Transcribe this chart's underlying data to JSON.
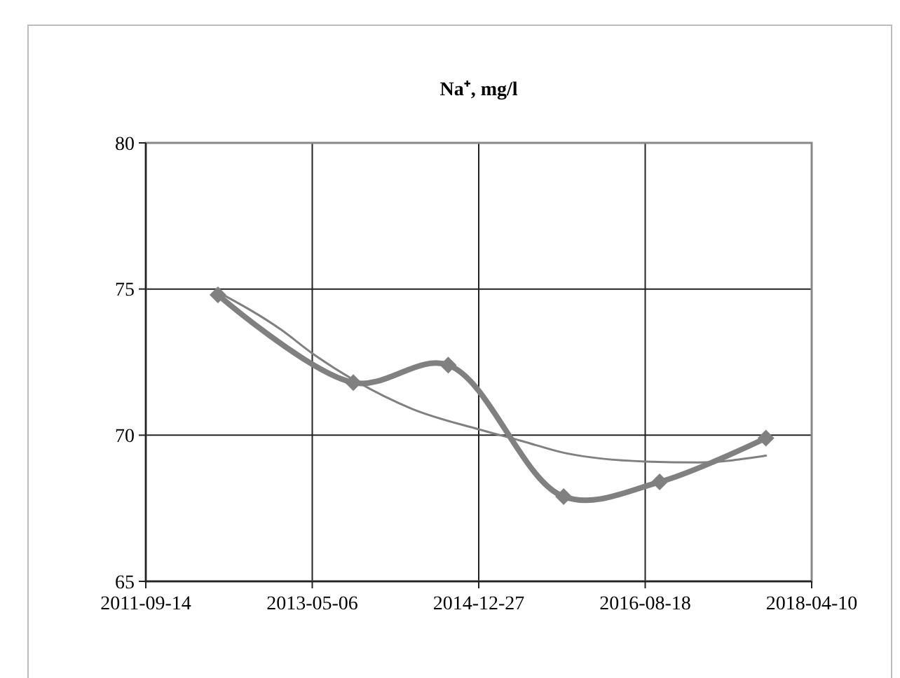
{
  "chart_data": {
    "type": "line",
    "title": "Na⁺, mg/l",
    "xlim": [
      "2011-09-14",
      "2018-04-10"
    ],
    "xticks": [
      "2011-09-14",
      "2013-05-06",
      "2014-12-27",
      "2016-08-18",
      "2018-04-10"
    ],
    "ylim": [
      65,
      80
    ],
    "yticks": [
      65,
      70,
      75,
      80
    ],
    "grid": true,
    "series": [
      {
        "color": "#808080",
        "marker": "diamond",
        "line_style": "solid",
        "x": [
          "2012-05-31",
          "2013-10-01",
          "2014-09-08",
          "2015-10-29",
          "2016-10-09",
          "2017-10-27"
        ],
        "values": [
          74.8,
          71.8,
          72.4,
          67.9,
          68.4,
          69.9
        ]
      },
      {
        "color": "#808080",
        "marker": "none",
        "line_style": "solid",
        "x": [
          "2012-05-31",
          "2013-01-15",
          "2013-05-06",
          "2013-10-01",
          "2014-05-01",
          "2014-12-27",
          "2015-06-01",
          "2015-10-29",
          "2016-08-18",
          "2017-03-01",
          "2017-10-27"
        ],
        "values": [
          74.9,
          73.6,
          72.8,
          71.9,
          70.9,
          70.2,
          69.8,
          69.4,
          69.1,
          69.07,
          69.3
        ]
      }
    ]
  }
}
